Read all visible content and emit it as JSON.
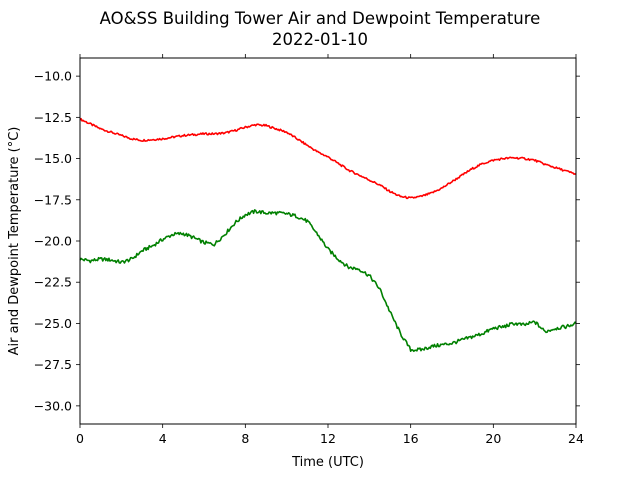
{
  "chart_data": {
    "type": "line",
    "title": "AO&SS Building Tower Air and Dewpoint Temperature",
    "subtitle": "2022-01-10",
    "xlabel": "Time (UTC)",
    "ylabel": "Air and Dewpoint Temperature (°C)",
    "xlim": [
      0,
      24
    ],
    "ylim": [
      -31.1,
      -8.9
    ],
    "grid": false,
    "legend": "none",
    "x_ticks": [
      0,
      4,
      8,
      12,
      16,
      20,
      24
    ],
    "x_tick_labels": [
      "0",
      "4",
      "8",
      "12",
      "16",
      "20",
      "24"
    ],
    "y_ticks": [
      -10.0,
      -12.5,
      -15.0,
      -17.5,
      -20.0,
      -22.5,
      -25.0,
      -27.5,
      -30.0
    ],
    "y_tick_labels": [
      "−10.0",
      "−12.5",
      "−15.0",
      "−17.5",
      "−20.0",
      "−22.5",
      "−25.0",
      "−27.5",
      "−30.0"
    ],
    "series": [
      {
        "color": "#ff0000",
        "x": [
          0,
          0.5,
          1.0,
          1.5,
          2.0,
          2.5,
          3.0,
          3.5,
          4.0,
          4.5,
          5.0,
          5.5,
          6.0,
          6.5,
          7.0,
          7.5,
          8.0,
          8.5,
          9.0,
          9.5,
          10.0,
          10.5,
          11.0,
          11.5,
          12.0,
          12.5,
          13.0,
          13.5,
          14.0,
          14.5,
          15.0,
          15.5,
          16.0,
          16.5,
          17.0,
          17.5,
          18.0,
          18.5,
          19.0,
          19.5,
          20.0,
          20.5,
          21.0,
          21.5,
          22.0,
          22.5,
          23.0,
          23.5,
          24.0
        ],
        "y": [
          -12.6,
          -12.9,
          -13.2,
          -13.4,
          -13.6,
          -13.8,
          -13.9,
          -13.85,
          -13.8,
          -13.7,
          -13.6,
          -13.55,
          -13.5,
          -13.5,
          -13.45,
          -13.3,
          -13.1,
          -12.95,
          -13.0,
          -13.2,
          -13.4,
          -13.8,
          -14.2,
          -14.6,
          -14.9,
          -15.3,
          -15.7,
          -16.0,
          -16.3,
          -16.6,
          -17.0,
          -17.3,
          -17.4,
          -17.3,
          -17.1,
          -16.8,
          -16.4,
          -16.0,
          -15.6,
          -15.3,
          -15.1,
          -15.0,
          -14.95,
          -15.0,
          -15.1,
          -15.35,
          -15.55,
          -15.75,
          -15.95
        ]
      },
      {
        "color": "#008000",
        "x": [
          0,
          0.5,
          1.0,
          1.5,
          2.0,
          2.5,
          3.0,
          3.5,
          4.0,
          4.5,
          5.0,
          5.5,
          6.0,
          6.5,
          7.0,
          7.5,
          8.0,
          8.5,
          9.0,
          9.5,
          10.0,
          10.5,
          11.0,
          11.5,
          12.0,
          12.5,
          13.0,
          13.5,
          14.0,
          14.5,
          15.0,
          15.5,
          16.0,
          16.5,
          17.0,
          17.5,
          18.0,
          18.5,
          19.0,
          19.5,
          20.0,
          20.5,
          21.0,
          21.5,
          22.0,
          22.5,
          23.0,
          23.5,
          24.0
        ],
        "y": [
          -21.1,
          -21.2,
          -21.1,
          -21.15,
          -21.3,
          -21.1,
          -20.6,
          -20.3,
          -19.9,
          -19.6,
          -19.55,
          -19.8,
          -20.1,
          -20.2,
          -19.6,
          -18.9,
          -18.4,
          -18.2,
          -18.3,
          -18.3,
          -18.35,
          -18.5,
          -18.8,
          -19.6,
          -20.5,
          -21.1,
          -21.6,
          -21.7,
          -22.1,
          -22.9,
          -24.3,
          -25.6,
          -26.6,
          -26.6,
          -26.4,
          -26.3,
          -26.2,
          -26.0,
          -25.8,
          -25.6,
          -25.3,
          -25.2,
          -25.0,
          -25.1,
          -24.9,
          -25.5,
          -25.3,
          -25.2,
          -25.0
        ]
      }
    ]
  }
}
